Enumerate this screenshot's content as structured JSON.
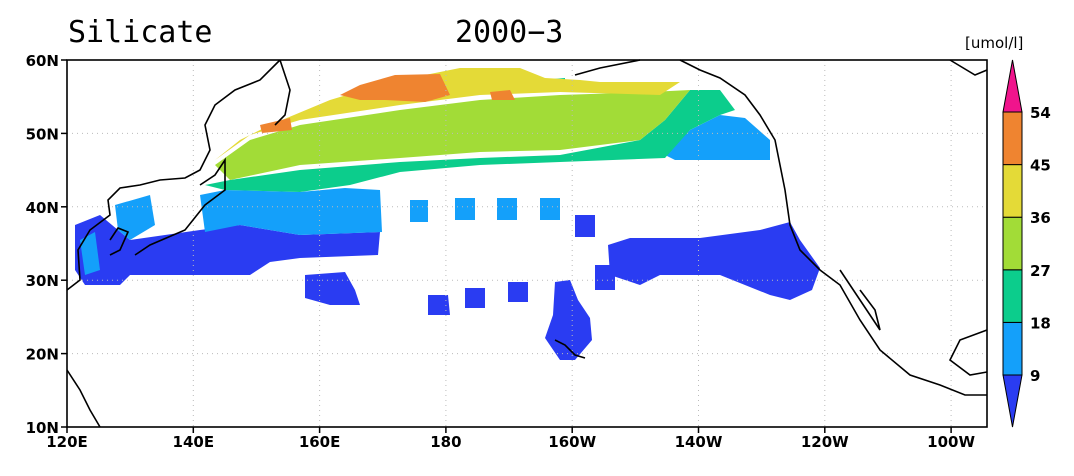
{
  "title": "Silicate",
  "date": "2000−3",
  "unit": "[umol/l]",
  "lat_ticks": [
    "60N",
    "50N",
    "40N",
    "30N",
    "20N",
    "10N"
  ],
  "lon_ticks": [
    "120E",
    "140E",
    "160E",
    "180",
    "160W",
    "140W",
    "120W",
    "100W"
  ],
  "colorbar": {
    "levels": [
      9,
      18,
      27,
      36,
      45,
      54
    ],
    "colors": [
      "#2a3cf2",
      "#14a0fa",
      "#0ccd8c",
      "#a2dc37",
      "#e4da37",
      "#ef8430",
      "#f0148c"
    ]
  }
}
